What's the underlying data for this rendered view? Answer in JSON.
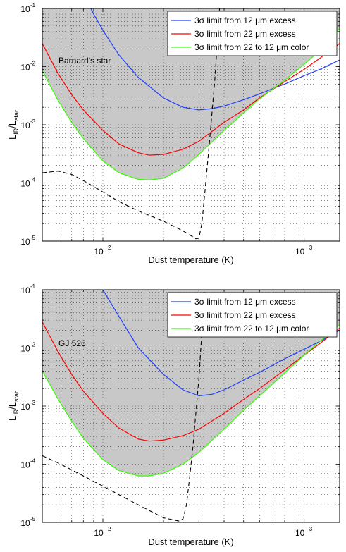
{
  "colors": {
    "shade": "#c8c8c8",
    "series_12um": "#1f3fff",
    "series_22um": "#ff0000",
    "series_color": "#33ff00",
    "dashed": "#000000"
  },
  "chart_data": [
    {
      "type": "line",
      "title": "",
      "annotation": "Barnard's star",
      "xlabel": "Dust temperature (K)",
      "ylabel": {
        "base": "L",
        "sub1": "IR",
        "mid": "/L",
        "sub2": "star"
      },
      "xscale": "log",
      "yscale": "log",
      "xlim": [
        50,
        1500
      ],
      "ylim": [
        1e-05,
        0.1
      ],
      "x_ticks": [
        {
          "value": 100,
          "base": "10",
          "exp": "2"
        },
        {
          "value": 1000,
          "base": "10",
          "exp": "3"
        }
      ],
      "y_ticks": [
        {
          "value": 1e-05,
          "base": "10",
          "exp": "-5"
        },
        {
          "value": 0.0001,
          "base": "10",
          "exp": "-4"
        },
        {
          "value": 0.001,
          "base": "10",
          "exp": "-3"
        },
        {
          "value": 0.01,
          "base": "10",
          "exp": "-2"
        },
        {
          "value": 0.1,
          "base": "10",
          "exp": "-1"
        }
      ],
      "grid": true,
      "legend_position": "top-right",
      "shaded_region": "above the 22 to 12 um color limit (upper bound 0.1)",
      "series": [
        {
          "name": "3σ  limit from 12 μm excess",
          "color_key": "series_12um",
          "x": [
            80,
            90,
            100,
            120,
            150,
            200,
            250,
            300,
            350,
            400,
            500,
            600,
            700,
            800,
            1000,
            1200,
            1500
          ],
          "y": [
            0.18,
            0.08,
            0.042,
            0.016,
            0.0065,
            0.0029,
            0.002,
            0.0018,
            0.0019,
            0.0021,
            0.0027,
            0.0034,
            0.0042,
            0.005,
            0.007,
            0.009,
            0.013
          ]
        },
        {
          "name": "3σ  limit from 22 μm excess",
          "color_key": "series_22um",
          "x": [
            50,
            60,
            70,
            80,
            100,
            120,
            150,
            170,
            200,
            250,
            300,
            400,
            500,
            600,
            800,
            1000,
            1200,
            1500
          ],
          "y": [
            0.025,
            0.0075,
            0.0033,
            0.0018,
            0.0008,
            0.00047,
            0.00033,
            0.0003,
            0.00031,
            0.00038,
            0.00052,
            0.0011,
            0.0018,
            0.0029,
            0.0055,
            0.009,
            0.014,
            0.025
          ]
        },
        {
          "name": "3σ  limit from 22 to 12 μm color",
          "color_key": "series_color",
          "x": [
            50,
            60,
            70,
            80,
            100,
            120,
            150,
            170,
            200,
            250,
            300,
            400,
            500,
            600,
            800,
            1000,
            1200,
            1500
          ],
          "y": [
            0.0085,
            0.0026,
            0.0011,
            0.00058,
            0.00024,
            0.00015,
            0.000115,
            0.000112,
            0.00012,
            0.00018,
            0.00031,
            0.0008,
            0.0016,
            0.0028,
            0.0058,
            0.011,
            0.019,
            0.045
          ]
        },
        {
          "name": "",
          "color_key": "dashed",
          "dashed": true,
          "x": [
            50,
            60,
            70,
            80,
            100,
            120,
            150,
            200,
            250,
            290,
            300,
            310,
            320,
            340,
            360,
            380
          ],
          "y": [
            0.00015,
            0.00016,
            0.00014,
            0.00011,
            7e-05,
            4.8e-05,
            3.3e-05,
            2.2e-05,
            1.5e-05,
            1.1e-05,
            1.12e-05,
            2e-05,
            6e-05,
            0.0006,
            0.006,
            0.1
          ]
        }
      ]
    },
    {
      "type": "line",
      "title": "",
      "annotation": "GJ 526",
      "xlabel": "Dust temperature (K)",
      "ylabel": {
        "base": "L",
        "sub1": "IR",
        "mid": "/L",
        "sub2": "star"
      },
      "xscale": "log",
      "yscale": "log",
      "xlim": [
        50,
        1500
      ],
      "ylim": [
        1e-05,
        0.1
      ],
      "x_ticks": [
        {
          "value": 100,
          "base": "10",
          "exp": "2"
        },
        {
          "value": 1000,
          "base": "10",
          "exp": "3"
        }
      ],
      "y_ticks": [
        {
          "value": 1e-05,
          "base": "10",
          "exp": "-5"
        },
        {
          "value": 0.0001,
          "base": "10",
          "exp": "-4"
        },
        {
          "value": 0.001,
          "base": "10",
          "exp": "-3"
        },
        {
          "value": 0.01,
          "base": "10",
          "exp": "-2"
        },
        {
          "value": 0.1,
          "base": "10",
          "exp": "-1"
        }
      ],
      "grid": true,
      "legend_position": "top-right",
      "shaded_region": "above the 22 to 12 um color limit (upper bound 0.1)",
      "series": [
        {
          "name": "3σ  limit from 12 μm excess",
          "color_key": "series_12um",
          "x": [
            100,
            120,
            150,
            200,
            250,
            300,
            350,
            400,
            500,
            600,
            800,
            1000,
            1200,
            1500
          ],
          "y": [
            0.1,
            0.035,
            0.01,
            0.0035,
            0.0019,
            0.0015,
            0.0016,
            0.0019,
            0.0028,
            0.0038,
            0.0065,
            0.0095,
            0.013,
            0.02
          ]
        },
        {
          "name": "3σ  limit from 22 μm excess",
          "color_key": "series_22um",
          "x": [
            50,
            60,
            70,
            80,
            100,
            120,
            150,
            170,
            200,
            250,
            300,
            400,
            500,
            600,
            800,
            1000,
            1200,
            1500
          ],
          "y": [
            0.028,
            0.0085,
            0.0035,
            0.0018,
            0.00075,
            0.00042,
            0.00027,
            0.00025,
            0.00026,
            0.00031,
            0.0004,
            0.00075,
            0.0013,
            0.002,
            0.0042,
            0.0075,
            0.012,
            0.022
          ]
        },
        {
          "name": "3σ  limit from 22 to 12 μm color",
          "color_key": "series_color",
          "x": [
            50,
            60,
            70,
            80,
            100,
            120,
            150,
            170,
            200,
            250,
            300,
            400,
            500,
            600,
            800,
            1000,
            1200,
            1500
          ],
          "y": [
            0.004,
            0.0013,
            0.00055,
            0.00028,
            0.00012,
            7.8e-05,
            6.3e-05,
            6.3e-05,
            7e-05,
            0.0001,
            0.00016,
            0.0004,
            0.00085,
            0.0015,
            0.0037,
            0.0075,
            0.013,
            0.025
          ]
        },
        {
          "name": "",
          "color_key": "dashed",
          "dashed": true,
          "x": [
            50,
            60,
            70,
            80,
            100,
            120,
            150,
            200,
            240,
            250,
            260,
            270,
            280,
            300,
            320
          ],
          "y": [
            0.00014,
            0.000105,
            8e-05,
            6.3e-05,
            4.2e-05,
            3e-05,
            2e-05,
            1.2e-05,
            1.05e-05,
            1.15e-05,
            2e-05,
            6e-05,
            0.0002,
            0.003,
            0.1
          ]
        }
      ]
    }
  ]
}
